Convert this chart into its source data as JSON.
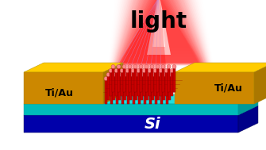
{
  "fig_width": 3.35,
  "fig_height": 1.89,
  "dpi": 100,
  "bg_color": "#ffffff",
  "si_color_top": "#0000cc",
  "si_color_dark": "#000088",
  "si_label": "Si",
  "si_label_color": "#ffffff",
  "cyan_layer_color": "#00cccc",
  "electrode_top_color": "#ffcc00",
  "electrode_side_color": "#cc8800",
  "electrode_label": "Ti/Au",
  "electrode_label_color": "#000000",
  "nanowire_color": "#cc0000",
  "nanowire_sphere_color": "#ff6666",
  "light_text": "light",
  "light_text_color": "#000000",
  "light_beam_color_inner": "#ffffff",
  "light_beam_color_outer": "#ff0000"
}
